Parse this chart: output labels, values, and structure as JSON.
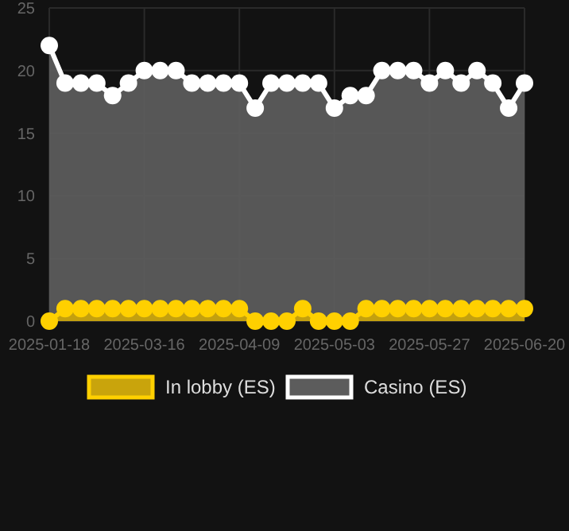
{
  "chart_data": {
    "type": "area",
    "categories": [
      "2025-01-18",
      null,
      null,
      null,
      null,
      null,
      "2025-03-16",
      null,
      null,
      null,
      null,
      null,
      "2025-04-09",
      null,
      null,
      null,
      null,
      null,
      "2025-05-03",
      null,
      null,
      null,
      null,
      null,
      "2025-05-27",
      null,
      null,
      null,
      null,
      null,
      "2025-06-20"
    ],
    "series": [
      {
        "name": "In lobby (ES)",
        "color": "#ffd000",
        "values": [
          0,
          1,
          1,
          1,
          1,
          1,
          1,
          1,
          1,
          1,
          1,
          1,
          1,
          0,
          0,
          0,
          1,
          0,
          0,
          0,
          1,
          1,
          1,
          1,
          1,
          1,
          1,
          1,
          1,
          1,
          1
        ]
      },
      {
        "name": "Casino (ES)",
        "color": "#ffffff",
        "values": [
          22,
          19,
          19,
          19,
          18,
          19,
          20,
          20,
          20,
          19,
          19,
          19,
          19,
          17,
          19,
          19,
          19,
          19,
          17,
          18,
          18,
          20,
          20,
          20,
          19,
          20,
          19,
          20,
          19,
          17,
          19
        ]
      }
    ],
    "ylim": [
      0,
      25
    ],
    "yticks": [
      0,
      5,
      10,
      15,
      20,
      25
    ],
    "grid": true,
    "legend": "bottom",
    "marker": "circle"
  }
}
